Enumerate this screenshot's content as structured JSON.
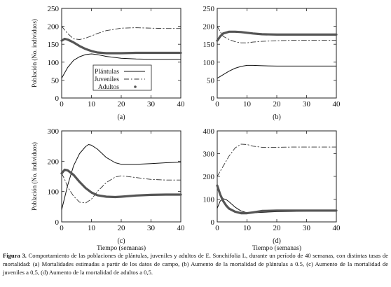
{
  "figure": {
    "caption_label": "Figura 3.",
    "caption_text": " Comportamiento de las poblaciones de plántulas, juveniles y adultos de E. Sonchifolia L, durante un período de 40 semanas, con distintas tasas de mortalidad: (a) Mortalidades estimadas a partir de los datos de campo, (b) Aumento de la mortalidad de plántulas a 0.5, (c) Aumento de la mortalidad de juveniles a 0,5, (d) Aumento de la mortalidad de adultos a 0,5."
  },
  "chart_data": [
    {
      "type": "line",
      "panel_label": "(a)",
      "xlabel": "",
      "ylabel": "Población (No. individuos)",
      "xlim": [
        0,
        40
      ],
      "ylim": [
        0,
        250
      ],
      "xticks": [
        0,
        10,
        20,
        30,
        40
      ],
      "yticks": [
        0,
        50,
        100,
        150,
        200,
        250
      ],
      "legend": {
        "position": "center",
        "entries": [
          "Plántulas",
          "Juveniles",
          "Adultos"
        ]
      },
      "series": [
        {
          "name": "Plántulas",
          "style": "solid",
          "x": [
            0,
            2,
            4,
            6,
            8,
            10,
            12,
            15,
            20,
            25,
            30,
            35,
            40
          ],
          "y": [
            55,
            85,
            105,
            115,
            121,
            123,
            121,
            116,
            111,
            109,
            108,
            108,
            108
          ]
        },
        {
          "name": "Juveniles",
          "style": "dashdot",
          "x": [
            0,
            2,
            4,
            6,
            8,
            10,
            12,
            15,
            20,
            25,
            30,
            35,
            40
          ],
          "y": [
            200,
            180,
            165,
            163,
            167,
            173,
            180,
            188,
            195,
            196,
            195,
            194,
            194
          ]
        },
        {
          "name": "Adultos",
          "style": "thick",
          "x": [
            0,
            1,
            2,
            4,
            6,
            8,
            10,
            12,
            15,
            20,
            25,
            30,
            35,
            40
          ],
          "y": [
            160,
            165,
            163,
            155,
            145,
            137,
            131,
            127,
            125,
            125,
            126,
            126,
            126,
            126
          ]
        }
      ]
    },
    {
      "type": "line",
      "panel_label": "(b)",
      "xlabel": "",
      "ylabel": "",
      "xlim": [
        0,
        40
      ],
      "ylim": [
        0,
        250
      ],
      "xticks": [
        0,
        10,
        20,
        30,
        40
      ],
      "yticks": [
        0,
        50,
        100,
        150,
        200,
        250
      ],
      "series": [
        {
          "name": "Plántulas",
          "style": "solid",
          "x": [
            0,
            2,
            4,
            6,
            8,
            10,
            12,
            15,
            20,
            25,
            30,
            35,
            40
          ],
          "y": [
            55,
            65,
            75,
            83,
            88,
            91,
            91,
            90,
            89,
            89,
            89,
            89,
            89
          ]
        },
        {
          "name": "Juveniles",
          "style": "dashdot",
          "x": [
            0,
            1,
            2,
            4,
            6,
            8,
            10,
            12,
            15,
            20,
            25,
            30,
            35,
            40
          ],
          "y": [
            200,
            185,
            172,
            163,
            157,
            154,
            154,
            156,
            158,
            160,
            161,
            161,
            161,
            161
          ]
        },
        {
          "name": "Adultos",
          "style": "thick",
          "x": [
            0,
            1,
            2,
            4,
            6,
            8,
            10,
            12,
            15,
            20,
            25,
            30,
            35,
            40
          ],
          "y": [
            160,
            172,
            180,
            185,
            185,
            184,
            182,
            180,
            178,
            177,
            177,
            177,
            177,
            177
          ]
        }
      ]
    },
    {
      "type": "line",
      "panel_label": "(c)",
      "xlabel": "Tiempo (semanas)",
      "ylabel": "Población (No. individuos)",
      "xlim": [
        0,
        40
      ],
      "ylim": [
        0,
        300
      ],
      "xticks": [
        0,
        10,
        20,
        30,
        40
      ],
      "yticks": [
        0,
        100,
        200,
        300
      ],
      "series": [
        {
          "name": "Plántulas",
          "style": "solid",
          "x": [
            0,
            2,
            4,
            6,
            8,
            9,
            10,
            12,
            15,
            18,
            20,
            25,
            30,
            35,
            40
          ],
          "y": [
            40,
            120,
            185,
            225,
            248,
            255,
            253,
            240,
            212,
            195,
            190,
            190,
            192,
            195,
            197
          ]
        },
        {
          "name": "Juveniles",
          "style": "dashdot",
          "x": [
            0,
            1,
            2,
            4,
            6,
            8,
            10,
            12,
            15,
            18,
            20,
            25,
            30,
            35,
            40
          ],
          "y": [
            160,
            140,
            115,
            85,
            65,
            62,
            75,
            100,
            130,
            148,
            152,
            146,
            140,
            138,
            138
          ]
        },
        {
          "name": "Adultos",
          "style": "thick",
          "x": [
            0,
            1,
            2,
            4,
            6,
            8,
            10,
            12,
            15,
            18,
            20,
            25,
            30,
            35,
            40
          ],
          "y": [
            160,
            172,
            170,
            155,
            132,
            112,
            97,
            88,
            83,
            82,
            83,
            87,
            89,
            90,
            90
          ]
        }
      ]
    },
    {
      "type": "line",
      "panel_label": "(d)",
      "xlabel": "Tiempo (semanas)",
      "ylabel": "",
      "xlim": [
        0,
        40
      ],
      "ylim": [
        0,
        400
      ],
      "xticks": [
        0,
        10,
        20,
        30,
        40
      ],
      "yticks": [
        0,
        100,
        200,
        300,
        400
      ],
      "series": [
        {
          "name": "Plántulas",
          "style": "solid",
          "x": [
            0,
            1,
            2,
            3,
            4,
            6,
            8,
            10,
            12,
            15,
            20,
            25,
            30,
            35,
            40
          ],
          "y": [
            60,
            92,
            102,
            98,
            88,
            65,
            48,
            40,
            40,
            42,
            45,
            46,
            47,
            47,
            47
          ]
        },
        {
          "name": "Juveniles",
          "style": "dashdot",
          "x": [
            0,
            2,
            4,
            6,
            8,
            10,
            12,
            15,
            20,
            25,
            30,
            35,
            40
          ],
          "y": [
            200,
            245,
            290,
            325,
            342,
            340,
            333,
            328,
            328,
            329,
            329,
            329,
            329
          ]
        },
        {
          "name": "Adultos",
          "style": "thick",
          "x": [
            0,
            1,
            2,
            3,
            4,
            6,
            8,
            10,
            12,
            15,
            20,
            25,
            30,
            35,
            40
          ],
          "y": [
            160,
            120,
            92,
            72,
            58,
            45,
            38,
            38,
            42,
            48,
            50,
            50,
            50,
            50,
            50
          ]
        }
      ]
    }
  ]
}
